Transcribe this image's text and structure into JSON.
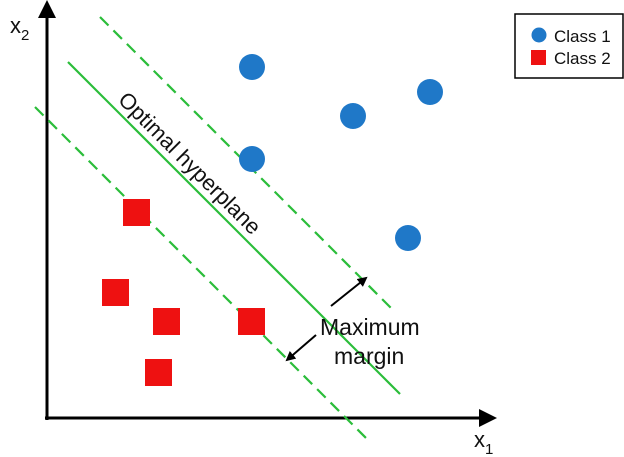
{
  "axes": {
    "x_label": "x",
    "x_subscript": "1",
    "y_label": "x",
    "y_subscript": "2"
  },
  "legend": {
    "items": [
      {
        "label": "Class 1",
        "marker": "circle",
        "color": "#1f78c8"
      },
      {
        "label": "Class 2",
        "marker": "square",
        "color": "#ee1111"
      }
    ]
  },
  "hyperplane": {
    "label": "Optimal hyperplane",
    "color": "#2bbd3a"
  },
  "annotation": {
    "line1": "Maximum",
    "line2": "margin"
  },
  "colors": {
    "class1": "#1f78c8",
    "class2": "#ee1111",
    "margin_lines": "#2bbd3a",
    "axes": "#000000"
  }
}
